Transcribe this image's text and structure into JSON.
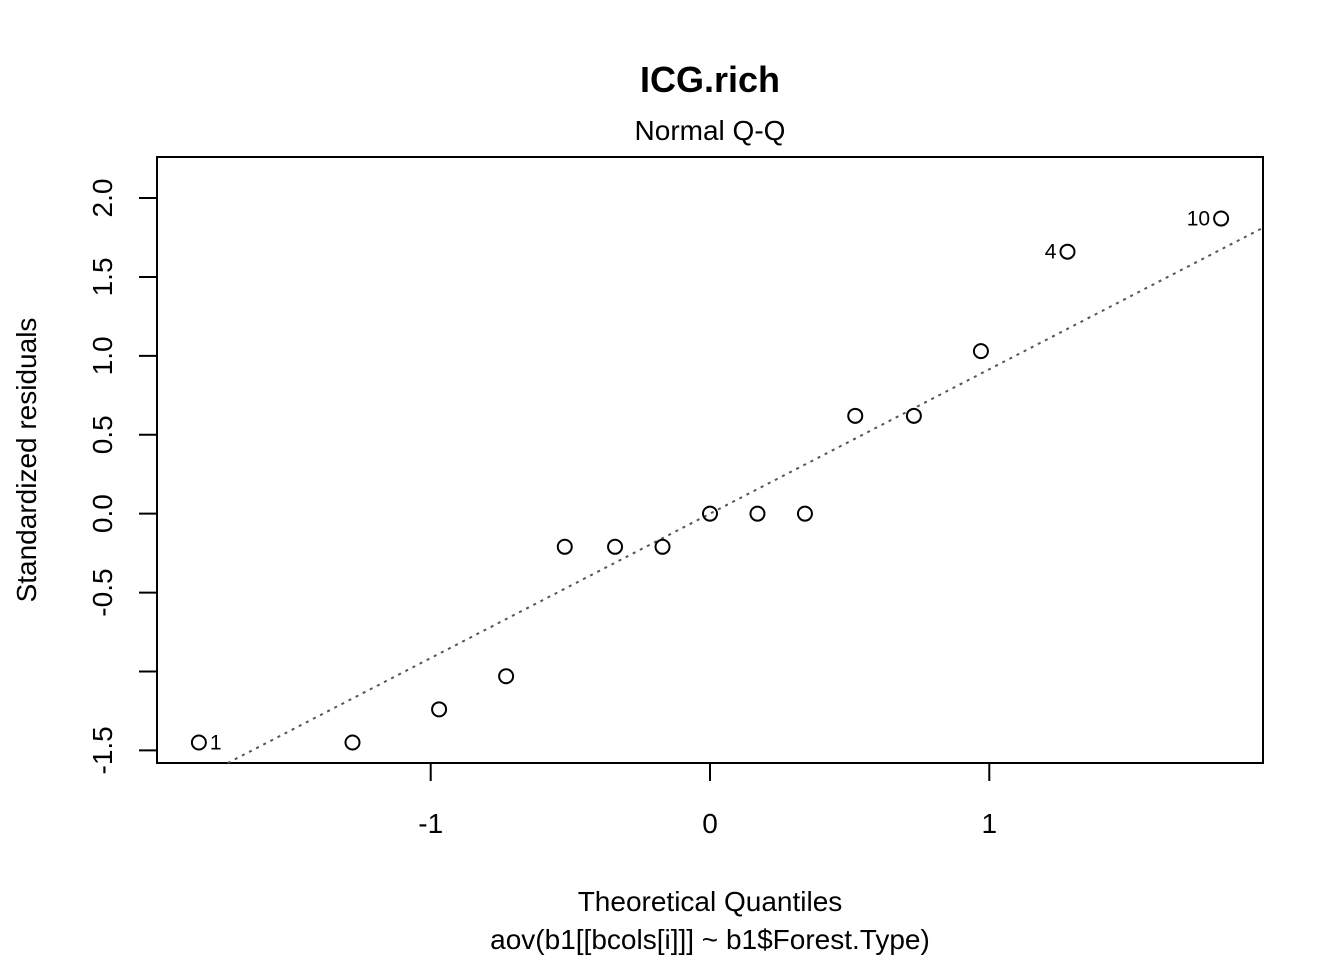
{
  "chart_data": {
    "type": "scatter",
    "title": "ICG.rich",
    "subtitle": "Normal Q-Q",
    "xlabel": "Theoretical Quantiles",
    "caption": "aov(b1[[bcols[i]]] ~ b1$Forest.Type)",
    "ylabel": "Standardized residuals",
    "xlim": [
      -1.98,
      1.98
    ],
    "ylim": [
      -1.58,
      2.26
    ],
    "x_ticks": [
      {
        "value": -1,
        "label": "-1"
      },
      {
        "value": 0,
        "label": "0"
      },
      {
        "value": 1,
        "label": "1"
      }
    ],
    "y_ticks": [
      {
        "value": -1.5,
        "label": "-1.5"
      },
      {
        "value": -1.0,
        "label": ""
      },
      {
        "value": -0.5,
        "label": "-0.5"
      },
      {
        "value": 0.0,
        "label": "0.0"
      },
      {
        "value": 0.5,
        "label": "0.5"
      },
      {
        "value": 1.0,
        "label": "1.0"
      },
      {
        "value": 1.5,
        "label": "1.5"
      },
      {
        "value": 2.0,
        "label": "2.0"
      }
    ],
    "points": [
      {
        "x": -1.83,
        "y": -1.45,
        "label": "1",
        "label_side": "right"
      },
      {
        "x": -1.28,
        "y": -1.45,
        "label": ""
      },
      {
        "x": -0.97,
        "y": -1.24,
        "label": ""
      },
      {
        "x": -0.73,
        "y": -1.03,
        "label": ""
      },
      {
        "x": -0.52,
        "y": -0.21,
        "label": ""
      },
      {
        "x": -0.34,
        "y": -0.21,
        "label": ""
      },
      {
        "x": -0.17,
        "y": -0.21,
        "label": ""
      },
      {
        "x": 0.0,
        "y": 0.0,
        "label": ""
      },
      {
        "x": 0.17,
        "y": 0.0,
        "label": ""
      },
      {
        "x": 0.34,
        "y": 0.0,
        "label": ""
      },
      {
        "x": 0.52,
        "y": 0.62,
        "label": ""
      },
      {
        "x": 0.73,
        "y": 0.62,
        "label": ""
      },
      {
        "x": 0.97,
        "y": 1.03,
        "label": ""
      },
      {
        "x": 1.28,
        "y": 1.66,
        "label": "4",
        "label_side": "left"
      },
      {
        "x": 1.83,
        "y": 1.87,
        "label": "10",
        "label_side": "left"
      }
    ],
    "reference_line": {
      "style": "dotted",
      "intercept": 0.0,
      "slope": 0.915
    },
    "grid": false,
    "legend": "none"
  }
}
